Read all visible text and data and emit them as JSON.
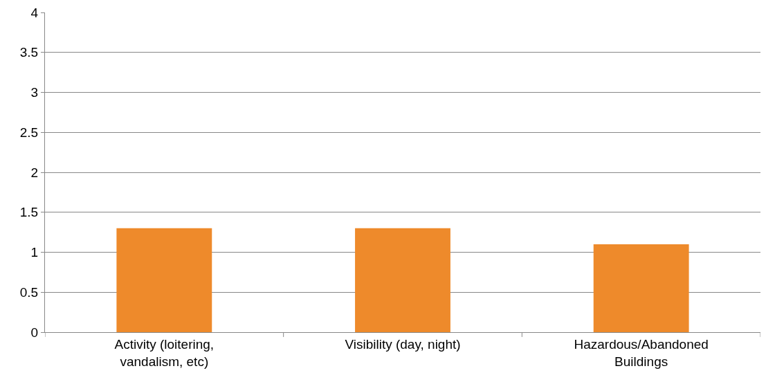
{
  "chart_data": {
    "type": "bar",
    "categories": [
      "Activity (loitering, vandalism, etc)",
      "Visibility (day, night)",
      "Hazardous/Abandoned Buildings"
    ],
    "values": [
      1.3,
      1.3,
      1.1
    ],
    "color": "#ee8a2b",
    "ylim": [
      0,
      4
    ],
    "yticks": [
      0,
      0.5,
      1,
      1.5,
      2,
      2.5,
      3,
      3.5,
      4
    ],
    "grid": "y"
  }
}
